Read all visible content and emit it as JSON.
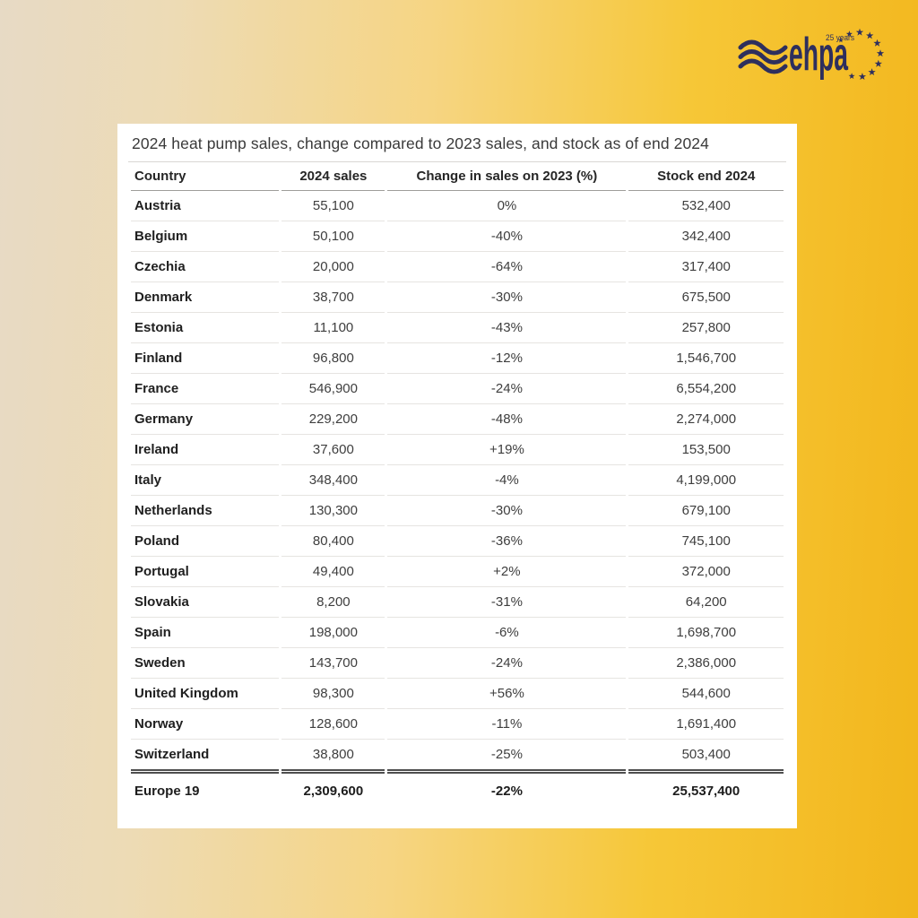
{
  "logo": {
    "brand": "ehpa",
    "badge": "25 years",
    "color": "#2e2f5d"
  },
  "chart_data": {
    "type": "table",
    "title": "2024 heat pump sales, change compared to 2023 sales, and stock as of end 2024",
    "columns": [
      "Country",
      "2024 sales",
      "Change in sales on 2023 (%)",
      "Stock end 2024"
    ],
    "rows": [
      [
        "Austria",
        "55,100",
        "0%",
        "532,400"
      ],
      [
        "Belgium",
        "50,100",
        "-40%",
        "342,400"
      ],
      [
        "Czechia",
        "20,000",
        "-64%",
        "317,400"
      ],
      [
        "Denmark",
        "38,700",
        "-30%",
        "675,500"
      ],
      [
        "Estonia",
        "11,100",
        "-43%",
        "257,800"
      ],
      [
        "Finland",
        "96,800",
        "-12%",
        "1,546,700"
      ],
      [
        "France",
        "546,900",
        "-24%",
        "6,554,200"
      ],
      [
        "Germany",
        "229,200",
        "-48%",
        "2,274,000"
      ],
      [
        "Ireland",
        "37,600",
        "+19%",
        "153,500"
      ],
      [
        "Italy",
        "348,400",
        "-4%",
        "4,199,000"
      ],
      [
        "Netherlands",
        "130,300",
        "-30%",
        "679,100"
      ],
      [
        "Poland",
        "80,400",
        "-36%",
        "745,100"
      ],
      [
        "Portugal",
        "49,400",
        "+2%",
        "372,000"
      ],
      [
        "Slovakia",
        "8,200",
        "-31%",
        "64,200"
      ],
      [
        "Spain",
        "198,000",
        "-6%",
        "1,698,700"
      ],
      [
        "Sweden",
        "143,700",
        "-24%",
        "2,386,000"
      ],
      [
        "United Kingdom",
        "98,300",
        "+56%",
        "544,600"
      ],
      [
        "Norway",
        "128,600",
        "-11%",
        "1,691,400"
      ],
      [
        "Switzerland",
        "38,800",
        "-25%",
        "503,400"
      ]
    ],
    "total_row": [
      "Europe 19",
      "2,309,600",
      "-22%",
      "25,537,400"
    ]
  },
  "colors": {
    "background_left": "#e7dac5",
    "background_mid": "#f6d583",
    "background_right": "#f2b61c",
    "card_background": "#ffffff",
    "logo_navy": "#2e2f5d",
    "header_text": "#262626",
    "number_text": "#3e3e3e",
    "row_border": "#e6e4e1",
    "header_border": "#9f9d9a",
    "total_rule": "#4f4f4f"
  }
}
